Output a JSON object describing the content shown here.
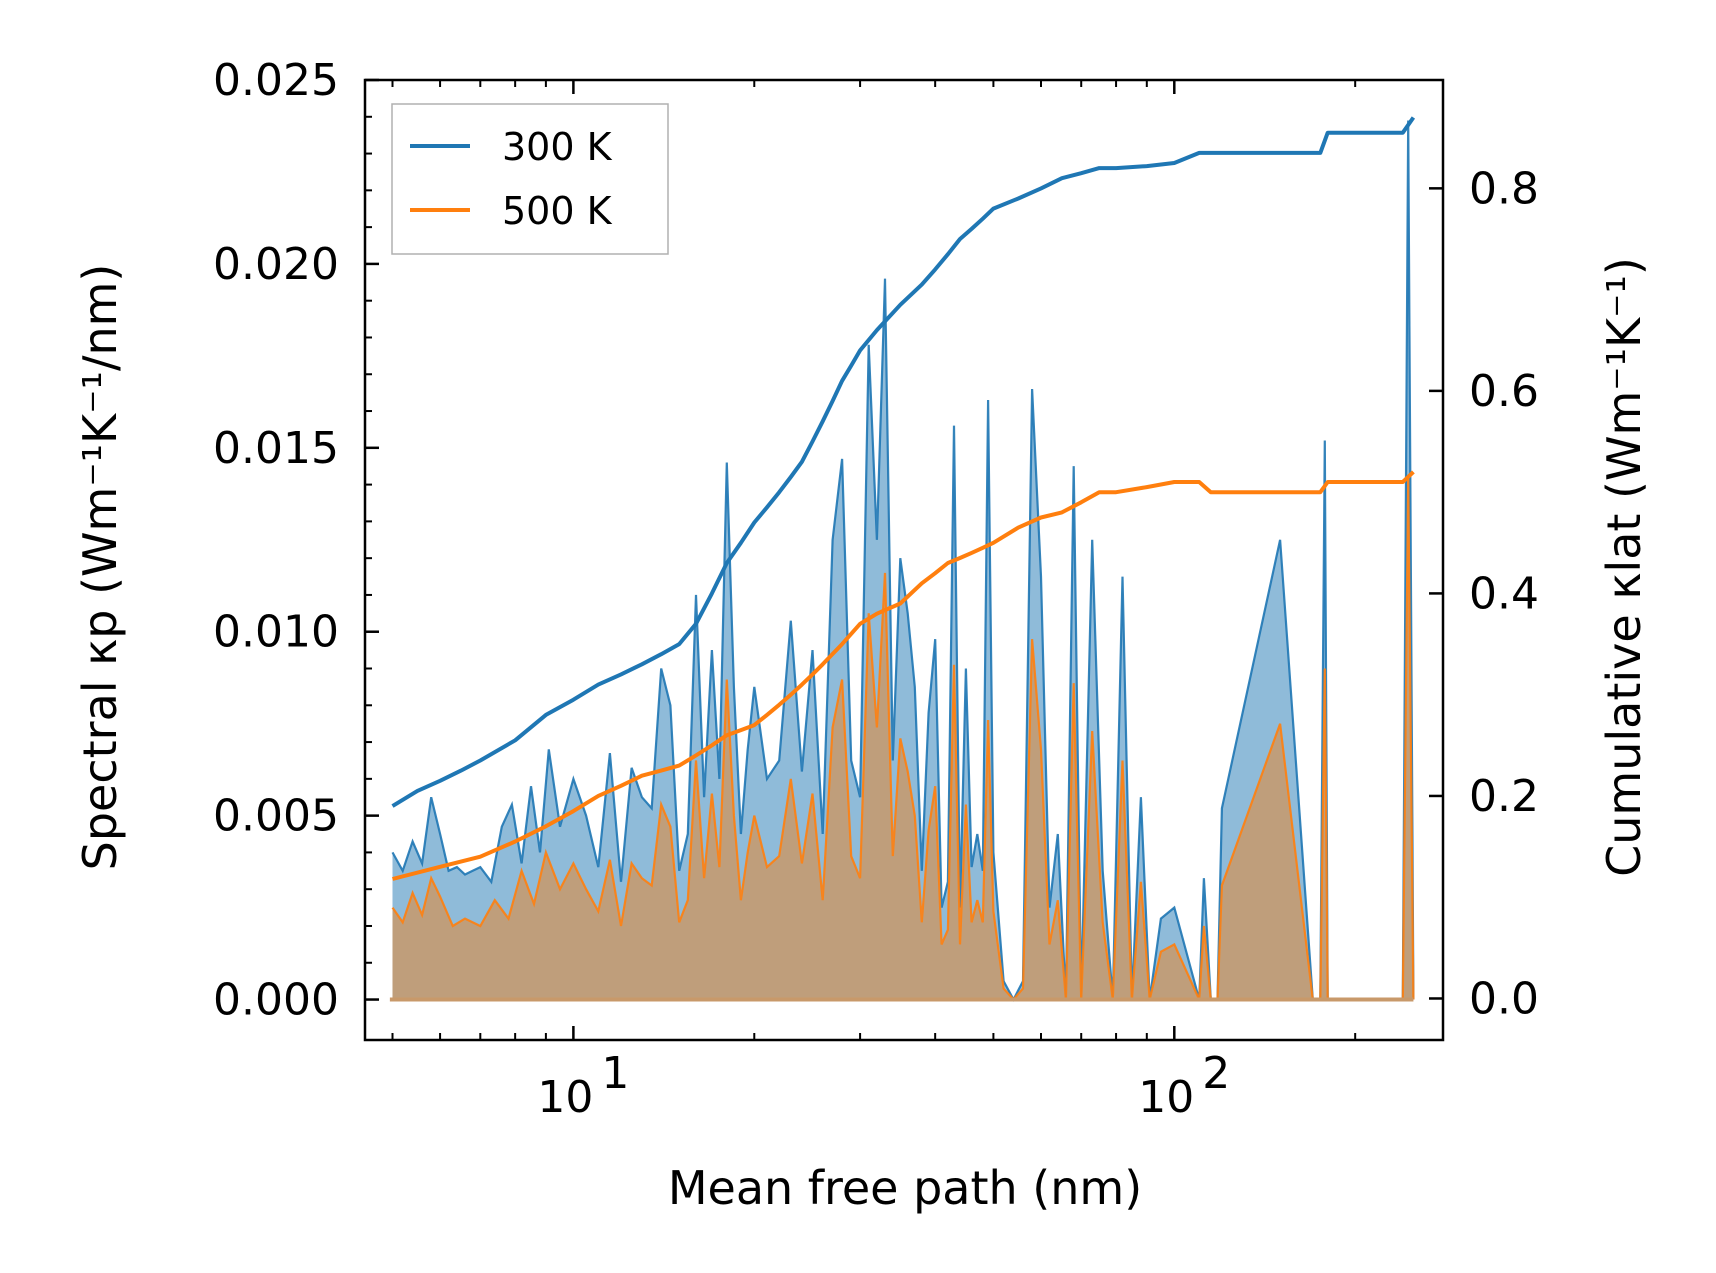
{
  "chart_data": {
    "type": "line",
    "xlabel": "Mean free path (nm)",
    "ylabel_left": "Spectral κp (Wm⁻¹K⁻¹/nm)",
    "ylabel_right": "Cumulative κlat (Wm⁻¹K⁻¹)",
    "xscale": "log",
    "xlim": [
      4.5,
      280
    ],
    "ylim_left": [
      -0.0011,
      0.025
    ],
    "ylim_right": [
      -0.041,
      0.907
    ],
    "x_major_ticks": [
      10,
      100
    ],
    "x_major_tick_labels": [
      "10",
      "10"
    ],
    "x_major_tick_exponents": [
      "1",
      "2"
    ],
    "y_left_ticks": [
      0.0,
      0.005,
      0.01,
      0.015,
      0.02,
      0.025
    ],
    "y_left_tick_labels": [
      "0.000",
      "0.005",
      "0.010",
      "0.015",
      "0.020",
      "0.025"
    ],
    "y_right_ticks": [
      0.0,
      0.2,
      0.4,
      0.6,
      0.8
    ],
    "y_right_tick_labels": [
      "0.0",
      "0.2",
      "0.4",
      "0.6",
      "0.8"
    ],
    "legend": {
      "position": "top-left",
      "entries": [
        "300 K",
        "500 K"
      ]
    },
    "colors": {
      "300K": "#1f77b4",
      "500K": "#ff7f0e",
      "fill300": "#1f77b4",
      "fill500": "#c8996a"
    },
    "series": [
      {
        "name": "300 K",
        "axis": "right",
        "kind": "cumulative",
        "x": [
          5,
          5.5,
          6,
          6.5,
          7,
          8,
          9,
          10,
          11,
          12,
          13,
          14,
          15,
          16,
          17,
          18,
          19,
          20,
          21,
          22,
          23,
          24,
          25,
          26,
          27,
          28,
          29,
          30,
          32,
          35,
          38,
          40,
          42,
          44,
          46,
          48,
          50,
          55,
          60,
          65,
          70,
          75,
          80,
          90,
          100,
          110,
          115,
          120,
          150,
          175,
          180,
          240,
          250
        ],
        "y": [
          0.19,
          0.205,
          0.215,
          0.225,
          0.235,
          0.255,
          0.28,
          0.295,
          0.31,
          0.32,
          0.33,
          0.34,
          0.35,
          0.37,
          0.4,
          0.43,
          0.45,
          0.47,
          0.485,
          0.5,
          0.515,
          0.53,
          0.55,
          0.57,
          0.59,
          0.61,
          0.625,
          0.64,
          0.66,
          0.685,
          0.705,
          0.72,
          0.735,
          0.75,
          0.76,
          0.77,
          0.78,
          0.79,
          0.8,
          0.81,
          0.815,
          0.82,
          0.82,
          0.822,
          0.825,
          0.835,
          0.835,
          0.835,
          0.835,
          0.835,
          0.855,
          0.855,
          0.87
        ]
      },
      {
        "name": "500 K",
        "axis": "right",
        "kind": "cumulative",
        "x": [
          5,
          6,
          7,
          8,
          9,
          10,
          11,
          12,
          13,
          14,
          15,
          16,
          17,
          18,
          19,
          20,
          21,
          22,
          23,
          24,
          25,
          26,
          28,
          30,
          32,
          35,
          38,
          40,
          42,
          44,
          46,
          48,
          50,
          55,
          60,
          65,
          70,
          75,
          80,
          90,
          100,
          110,
          115,
          150,
          175,
          180,
          240,
          250
        ],
        "y": [
          0.118,
          0.13,
          0.14,
          0.155,
          0.17,
          0.185,
          0.2,
          0.21,
          0.22,
          0.225,
          0.23,
          0.24,
          0.25,
          0.26,
          0.265,
          0.27,
          0.28,
          0.29,
          0.3,
          0.31,
          0.32,
          0.33,
          0.35,
          0.37,
          0.38,
          0.39,
          0.41,
          0.42,
          0.43,
          0.435,
          0.44,
          0.445,
          0.45,
          0.465,
          0.475,
          0.48,
          0.49,
          0.5,
          0.5,
          0.505,
          0.51,
          0.51,
          0.5,
          0.5,
          0.5,
          0.51,
          0.51,
          0.52
        ]
      },
      {
        "name": "300 K spectral",
        "axis": "left",
        "kind": "spectral",
        "x": [
          5,
          5.2,
          5.4,
          5.6,
          5.8,
          6.0,
          6.2,
          6.4,
          6.6,
          6.8,
          7.0,
          7.3,
          7.6,
          7.9,
          8.2,
          8.5,
          8.8,
          9.1,
          9.5,
          10,
          10.5,
          11,
          11.5,
          12,
          12.5,
          13,
          13.5,
          14,
          14.5,
          15,
          15.5,
          16,
          16.5,
          17,
          17.5,
          18,
          18.5,
          19,
          19.5,
          20,
          21,
          22,
          23,
          24,
          25,
          26,
          27,
          28,
          29,
          30,
          31,
          32,
          33,
          34,
          35,
          36,
          37,
          38,
          39,
          40,
          41,
          42,
          43,
          44,
          45,
          46,
          47,
          48,
          49,
          50,
          52,
          54,
          56,
          58,
          60,
          62,
          64,
          66,
          68,
          70,
          73,
          76,
          79,
          82,
          85,
          88,
          91,
          95,
          100,
          110,
          112,
          115,
          118,
          120,
          150,
          170,
          175,
          178,
          180,
          240,
          245,
          250
        ],
        "y": [
          0.004,
          0.0035,
          0.0043,
          0.0037,
          0.0055,
          0.0045,
          0.0035,
          0.0036,
          0.0034,
          0.0035,
          0.0036,
          0.0032,
          0.0047,
          0.0053,
          0.0037,
          0.0058,
          0.004,
          0.0068,
          0.0047,
          0.006,
          0.005,
          0.0036,
          0.0067,
          0.0032,
          0.0063,
          0.0055,
          0.0052,
          0.009,
          0.008,
          0.0035,
          0.0045,
          0.011,
          0.0055,
          0.0095,
          0.006,
          0.0146,
          0.0085,
          0.0045,
          0.0068,
          0.0085,
          0.006,
          0.0065,
          0.0103,
          0.0062,
          0.0095,
          0.0045,
          0.0125,
          0.0147,
          0.0065,
          0.0055,
          0.0178,
          0.0125,
          0.0196,
          0.0065,
          0.012,
          0.0105,
          0.0085,
          0.0035,
          0.0078,
          0.0098,
          0.0025,
          0.0032,
          0.0156,
          0.0025,
          0.009,
          0.0036,
          0.0045,
          0.0035,
          0.0163,
          0.004,
          0.0005,
          0.0,
          0.0005,
          0.0166,
          0.0115,
          0.0025,
          0.0045,
          0.0,
          0.0145,
          0.0,
          0.0125,
          0.0035,
          0.0,
          0.0115,
          0.0,
          0.0055,
          0.0,
          0.0022,
          0.0025,
          0.0,
          0.0033,
          0.0,
          0.0,
          0.0052,
          0.0125,
          0.0,
          0.0,
          0.0152,
          0.0,
          0.0,
          0.0239,
          0.0
        ]
      },
      {
        "name": "500 K spectral",
        "axis": "left",
        "kind": "spectral",
        "x": [
          5,
          5.2,
          5.4,
          5.6,
          5.8,
          6.0,
          6.3,
          6.6,
          7.0,
          7.4,
          7.8,
          8.2,
          8.6,
          9.0,
          9.5,
          10,
          10.5,
          11,
          11.5,
          12,
          12.5,
          13,
          13.5,
          14,
          14.5,
          15,
          15.5,
          16,
          16.5,
          17,
          17.5,
          18,
          18.5,
          19,
          19.5,
          20,
          21,
          22,
          23,
          24,
          25,
          26,
          27,
          28,
          29,
          30,
          31,
          32,
          33,
          34,
          35,
          36,
          37,
          38,
          39,
          40,
          41,
          42,
          43,
          44,
          45,
          46,
          47,
          48,
          49,
          50,
          52,
          54,
          56,
          58,
          60,
          62,
          64,
          66,
          68,
          70,
          73,
          76,
          79,
          82,
          85,
          88,
          91,
          95,
          100,
          110,
          112,
          115,
          118,
          120,
          150,
          170,
          175,
          178,
          180,
          240,
          245,
          250
        ],
        "y": [
          0.0025,
          0.0021,
          0.0029,
          0.0023,
          0.0033,
          0.0028,
          0.002,
          0.0022,
          0.002,
          0.0027,
          0.0022,
          0.0035,
          0.0026,
          0.004,
          0.003,
          0.0037,
          0.003,
          0.0024,
          0.0038,
          0.002,
          0.0037,
          0.0033,
          0.0031,
          0.0053,
          0.0047,
          0.0021,
          0.0027,
          0.0065,
          0.0033,
          0.0056,
          0.0036,
          0.0087,
          0.005,
          0.0027,
          0.004,
          0.005,
          0.0036,
          0.0039,
          0.006,
          0.0037,
          0.0056,
          0.0027,
          0.0074,
          0.0087,
          0.0039,
          0.0033,
          0.0105,
          0.0074,
          0.0116,
          0.0039,
          0.0071,
          0.0062,
          0.005,
          0.0021,
          0.0046,
          0.0058,
          0.0015,
          0.0019,
          0.0091,
          0.0015,
          0.0053,
          0.0021,
          0.0027,
          0.0021,
          0.0076,
          0.0024,
          0.0003,
          0.0,
          0.0003,
          0.0098,
          0.0068,
          0.0015,
          0.0027,
          0.0,
          0.0086,
          0.0,
          0.0073,
          0.0021,
          0.0,
          0.0065,
          0.0,
          0.0032,
          0.0,
          0.0013,
          0.0015,
          0.0,
          0.002,
          0.0,
          0.0,
          0.0031,
          0.0075,
          0.0,
          0.0,
          0.009,
          0.0,
          0.0,
          0.0142,
          0.0
        ]
      }
    ]
  }
}
